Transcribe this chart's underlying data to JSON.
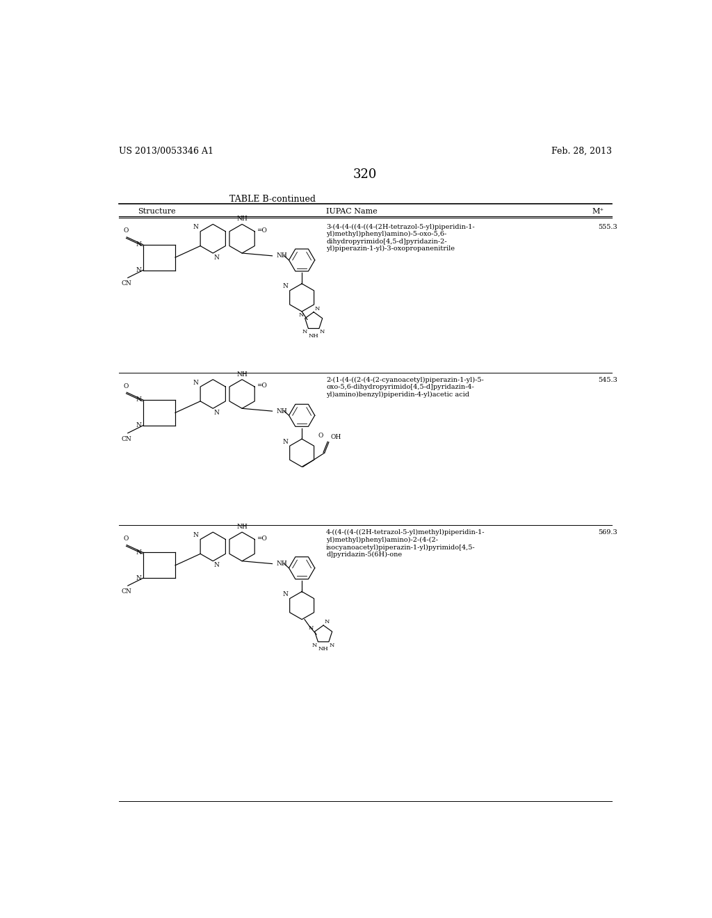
{
  "background_color": "#ffffff",
  "page_left_text": "US 2013/0053346 A1",
  "page_right_text": "Feb. 28, 2013",
  "page_number": "320",
  "table_title": "TABLE B-continued",
  "col_headers": [
    "Structure",
    "IUPAC Name",
    "M⁺"
  ],
  "rows": [
    {
      "iupac": "3-(4-(4-((4-((4-(2H-tetrazol-5-yl)piperidin-1-\nyl)methyl)phenyl)amino)-5-oxo-5,6-\ndihydropyrimido[4,5-d]pyridazin-2-\nyl)piperazin-1-yl)-3-oxopropanenitrile",
      "mass": "555.3"
    },
    {
      "iupac": "2-(1-(4-((2-(4-(2-cyanoacetyl)piperazin-1-yl)-5-\noxo-5,6-dihydropyrimido[4,5-d]pyridazin-4-\nyl)amino)benzyl)piperidin-4-yl)acetic acid",
      "mass": "545.3"
    },
    {
      "iupac": "4-((4-((4-((2H-tetrazol-5-yl)methyl)piperidin-1-\nyl)methyl)phenyl)amino)-2-(4-(2-\nisocyanoacetyl)piperazin-1-yl)pyrimido[4,5-\nd]pyridazin-5(6H)-one",
      "mass": "569.3"
    }
  ]
}
